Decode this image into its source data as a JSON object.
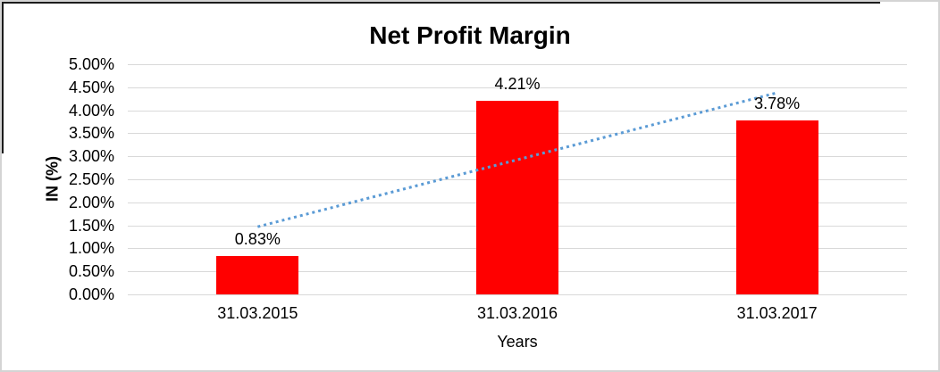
{
  "frame": {
    "outer_border_color": "#d4d4d4",
    "partial_black_border_color": "#1c1c1c",
    "background": "#ffffff"
  },
  "chart_data": {
    "type": "bar",
    "title": "Net Profit Margin",
    "categories": [
      "31.03.2015",
      "31.03.2016",
      "31.03.2017"
    ],
    "values": [
      0.83,
      4.21,
      3.78
    ],
    "data_labels": [
      "0.83%",
      "4.21%",
      "3.78%"
    ],
    "xlabel": "Years",
    "ylabel": "IN (%)",
    "ylim": [
      0,
      5
    ],
    "ytick_step": 0.5,
    "yticks": [
      "0.00%",
      "0.50%",
      "1.00%",
      "1.50%",
      "2.00%",
      "2.50%",
      "3.00%",
      "3.50%",
      "4.00%",
      "4.50%",
      "5.00%"
    ],
    "grid": true,
    "legend": false,
    "bar_color": "#FF0000",
    "text_color": "#000000",
    "gridline_color": "#d9d9d9",
    "trendline": {
      "type": "linear",
      "style": "dotted",
      "color": "#5B9BD5",
      "start_value": 1.47,
      "end_value": 4.38
    }
  }
}
